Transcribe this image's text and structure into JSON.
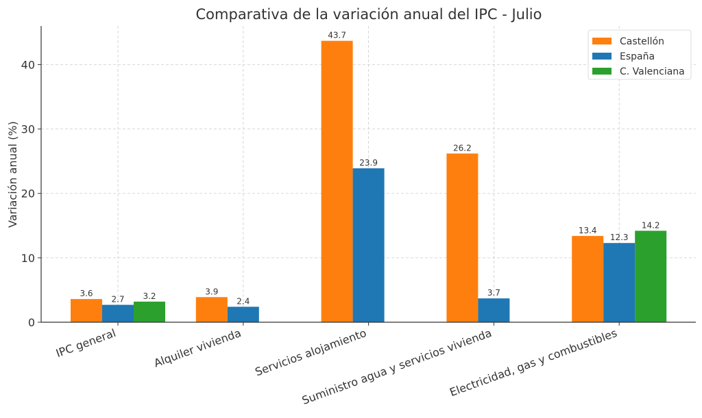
{
  "chart_data": {
    "type": "bar",
    "title": "Comparativa de la variación anual del IPC - Julio",
    "xlabel": "",
    "ylabel": "Variación anual (%)",
    "ylim": [
      0,
      46
    ],
    "yticks": [
      0,
      10,
      20,
      30,
      40
    ],
    "grid": true,
    "legend_placement": "top-right",
    "categories": [
      "IPC general",
      "Alquiler vivienda",
      "Servicios alojamiento",
      "Suministro agua y servicios vivienda",
      "Electricidad, gas y combustibles"
    ],
    "series": [
      {
        "name": "Castellón",
        "color": "#ff7f0e",
        "values": [
          3.6,
          3.9,
          43.7,
          26.2,
          13.4
        ]
      },
      {
        "name": "España",
        "color": "#1f77b4",
        "values": [
          2.7,
          2.4,
          23.9,
          3.7,
          12.3
        ]
      },
      {
        "name": "C. Valenciana",
        "color": "#2ca02c",
        "values": [
          3.2,
          null,
          null,
          null,
          14.2
        ]
      }
    ]
  }
}
